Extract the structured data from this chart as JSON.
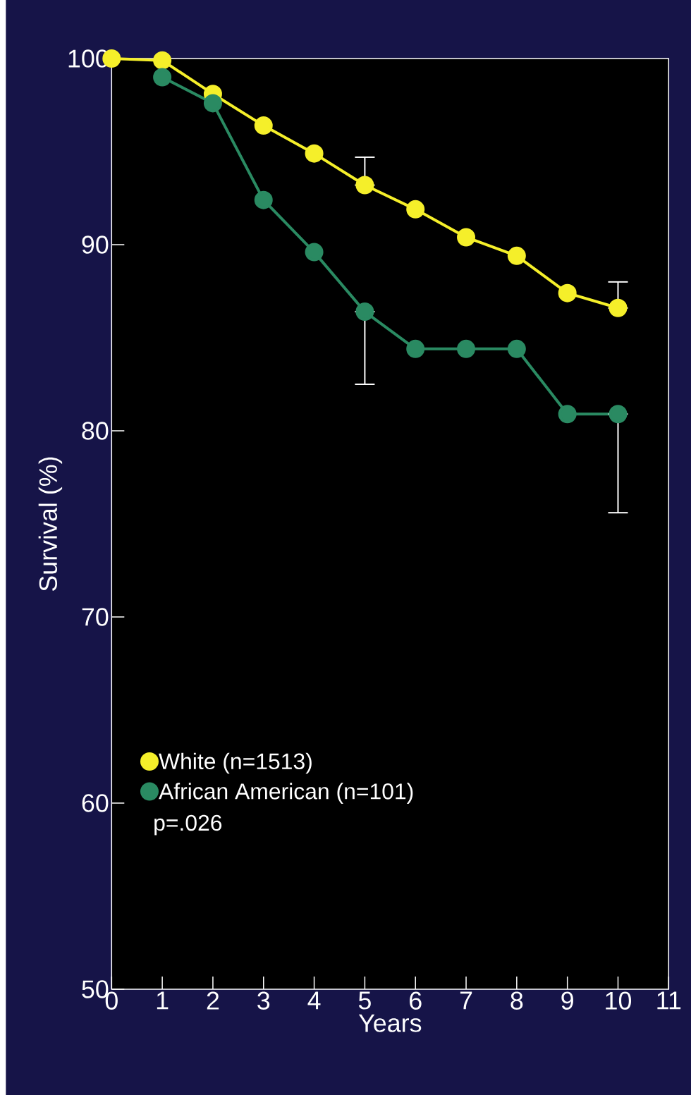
{
  "chart_data": {
    "type": "line",
    "xlabel": "Years",
    "ylabel": "Survival (%)",
    "x": [
      0,
      1,
      2,
      3,
      4,
      5,
      6,
      7,
      8,
      9,
      10
    ],
    "series": [
      {
        "name": "White (n=1513)",
        "color": "#f5ef2a",
        "values": [
          100,
          99.9,
          98.1,
          96.4,
          94.9,
          93.2,
          91.9,
          90.4,
          89.4,
          87.4,
          86.6
        ],
        "errors": [
          null,
          null,
          null,
          null,
          null,
          [
            93.2,
            94.7
          ],
          null,
          null,
          null,
          null,
          [
            86.6,
            88.0
          ]
        ]
      },
      {
        "name": "African American (n=101)",
        "color": "#2a8a62",
        "values": [
          null,
          99.0,
          97.6,
          92.4,
          89.6,
          86.4,
          84.4,
          84.4,
          84.4,
          80.9,
          80.9
        ],
        "errors": [
          null,
          null,
          null,
          null,
          null,
          [
            82.5,
            86.4
          ],
          null,
          null,
          null,
          null,
          [
            75.6,
            80.9
          ]
        ]
      }
    ],
    "xlim": [
      0,
      11
    ],
    "xticks": [
      0,
      1,
      2,
      3,
      4,
      5,
      6,
      7,
      8,
      9,
      10,
      11
    ],
    "ylim": [
      50,
      100
    ],
    "yticks": [
      50,
      60,
      70,
      80,
      90,
      100
    ],
    "marker": "circle",
    "line_style": "solid",
    "legend": "bottom left",
    "grid": false,
    "annotations": [
      "p=.026"
    ]
  }
}
